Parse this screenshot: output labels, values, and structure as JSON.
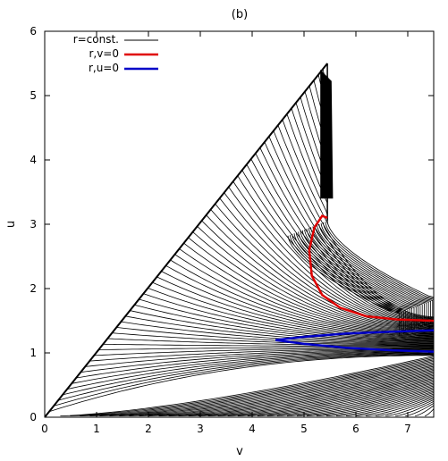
{
  "chart_data": {
    "type": "line",
    "title": "(b)",
    "xlabel": "v",
    "ylabel": "u",
    "xlim": [
      0,
      7.5
    ],
    "ylim": [
      0,
      6
    ],
    "xticks": [
      "0",
      "1",
      "2",
      "3",
      "4",
      "5",
      "6",
      "7"
    ],
    "yticks": [
      "0",
      "1",
      "2",
      "3",
      "4",
      "5",
      "6"
    ],
    "grid": false,
    "legend_position": "top-left",
    "series": [
      {
        "name": "r=const.",
        "color": "#000000",
        "description_curves": "family of constant-r contours",
        "boundary": [
          [
            0,
            0
          ],
          [
            5.45,
            5.5
          ],
          [
            5.45,
            3.05
          ],
          [
            5.6,
            2.7
          ],
          [
            6.0,
            2.3
          ],
          [
            7.5,
            1.85
          ]
        ]
      },
      {
        "name": "r,v=0",
        "color": "#e00000",
        "points": [
          [
            5.45,
            3.1
          ],
          [
            5.35,
            3.13
          ],
          [
            5.2,
            2.95
          ],
          [
            5.1,
            2.6
          ],
          [
            5.15,
            2.2
          ],
          [
            5.35,
            1.9
          ],
          [
            5.7,
            1.7
          ],
          [
            6.2,
            1.57
          ],
          [
            6.8,
            1.52
          ],
          [
            7.5,
            1.5
          ]
        ]
      },
      {
        "name": "r,u=0",
        "color": "#0000c8",
        "upper": [
          [
            4.45,
            1.2
          ],
          [
            5.0,
            1.25
          ],
          [
            5.8,
            1.3
          ],
          [
            6.7,
            1.33
          ],
          [
            7.5,
            1.35
          ]
        ],
        "lower": [
          [
            4.45,
            1.2
          ],
          [
            5.0,
            1.14
          ],
          [
            5.8,
            1.08
          ],
          [
            6.7,
            1.04
          ],
          [
            7.5,
            1.02
          ]
        ]
      }
    ]
  },
  "legend": [
    {
      "label": "r=const.",
      "color": "#000000"
    },
    {
      "label": "r,v=0",
      "color": "#e00000"
    },
    {
      "label": "r,u=0",
      "color": "#0000c8"
    }
  ]
}
